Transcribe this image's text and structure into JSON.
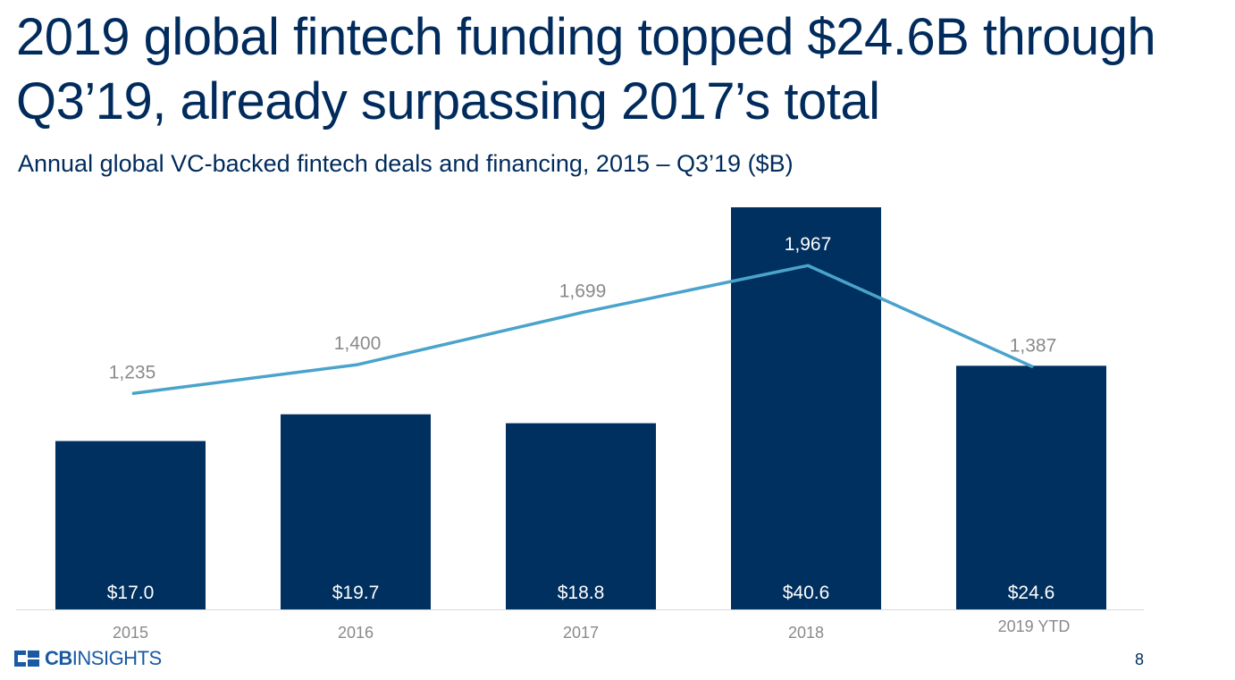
{
  "slide": {
    "title": "2019 global fintech funding topped $24.6B through Q3’19, already surpassing 2017’s total",
    "subtitle": "Annual global VC-backed fintech deals and financing, 2015 – Q3’19 ($B)",
    "logo_prefix": "CB",
    "logo_suffix": "INSIGHTS",
    "page_number": "8"
  },
  "colors": {
    "bars": "#00305f",
    "line": "#4aa3cc",
    "bar_label": "#ffffff",
    "line_label": "#8a8a8a",
    "tick_label": "#8a8a8a",
    "axis": "#d9d9d9",
    "title": "#002b5c",
    "logo": "#1a5aa3"
  },
  "chart_data": {
    "type": "bar",
    "title": "Annual global VC-backed fintech deals and financing, 2015 – Q3’19 ($B)",
    "categories": [
      "2015",
      "2016",
      "2017",
      "2018",
      "2019 YTD"
    ],
    "series": [
      {
        "name": "",
        "type": "bar",
        "values": [
          17.0,
          19.7,
          18.8,
          40.6,
          24.6
        ],
        "labels": [
          "$17.0",
          "$19.7",
          "$18.8",
          "$40.6",
          "$24.6"
        ]
      },
      {
        "name": "",
        "type": "line",
        "values": [
          1235,
          1400,
          1699,
          1967,
          1387
        ],
        "labels": [
          "1,235",
          "1,400",
          "1,699",
          "1,967",
          "1,387"
        ]
      }
    ],
    "legend": "none",
    "grid": false,
    "ylim_bars": [
      0,
      40.6
    ],
    "ylim_line": [
      0,
      2300
    ]
  }
}
